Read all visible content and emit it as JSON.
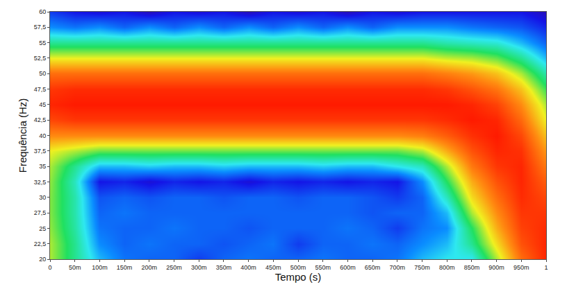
{
  "chart_data": {
    "type": "heatmap",
    "xlabel": "Tempo (s)",
    "ylabel": "Frequência (Hz)",
    "x": [
      0,
      0.05,
      0.1,
      0.15,
      0.2,
      0.25,
      0.3,
      0.35,
      0.4,
      0.45,
      0.5,
      0.55,
      0.6,
      0.65,
      0.7,
      0.75,
      0.8,
      0.85,
      0.9,
      0.95,
      1
    ],
    "y": [
      20,
      22.5,
      25,
      27.5,
      30,
      32.5,
      35,
      37.5,
      40,
      42.5,
      45,
      47.5,
      50,
      52.5,
      55,
      57.5,
      60
    ],
    "cells": [
      [
        0.6,
        0.45,
        0.3,
        0.22,
        0.2,
        0.2,
        0.15,
        0.2,
        0.22,
        0.2,
        0.2,
        0.22,
        0.2,
        0.2,
        0.22,
        0.3,
        0.35,
        0.35,
        0.6,
        0.85,
        0.98
      ],
      [
        0.6,
        0.45,
        0.25,
        0.2,
        0.22,
        0.2,
        0.2,
        0.18,
        0.2,
        0.22,
        0.15,
        0.2,
        0.2,
        0.22,
        0.2,
        0.25,
        0.3,
        0.45,
        0.68,
        0.9,
        0.98
      ],
      [
        0.58,
        0.43,
        0.22,
        0.2,
        0.2,
        0.22,
        0.2,
        0.2,
        0.18,
        0.2,
        0.2,
        0.2,
        0.22,
        0.2,
        0.15,
        0.22,
        0.25,
        0.5,
        0.75,
        0.93,
        0.97
      ],
      [
        0.57,
        0.42,
        0.2,
        0.22,
        0.2,
        0.2,
        0.2,
        0.2,
        0.2,
        0.2,
        0.2,
        0.2,
        0.2,
        0.18,
        0.2,
        0.2,
        0.3,
        0.6,
        0.8,
        0.95,
        0.95
      ],
      [
        0.57,
        0.42,
        0.18,
        0.2,
        0.18,
        0.2,
        0.2,
        0.18,
        0.2,
        0.2,
        0.18,
        0.2,
        0.2,
        0.18,
        0.15,
        0.2,
        0.4,
        0.68,
        0.85,
        0.97,
        0.92
      ],
      [
        0.58,
        0.4,
        0.1,
        0.12,
        0.08,
        0.12,
        0.1,
        0.12,
        0.08,
        0.12,
        0.1,
        0.12,
        0.1,
        0.12,
        0.1,
        0.25,
        0.5,
        0.75,
        0.9,
        0.98,
        0.88
      ],
      [
        0.6,
        0.45,
        0.3,
        0.3,
        0.32,
        0.3,
        0.3,
        0.32,
        0.3,
        0.3,
        0.3,
        0.32,
        0.3,
        0.3,
        0.35,
        0.4,
        0.6,
        0.83,
        0.95,
        0.98,
        0.83
      ],
      [
        0.65,
        0.6,
        0.55,
        0.55,
        0.55,
        0.55,
        0.55,
        0.55,
        0.55,
        0.55,
        0.55,
        0.55,
        0.55,
        0.55,
        0.55,
        0.6,
        0.75,
        0.9,
        0.98,
        0.96,
        0.78
      ],
      [
        0.8,
        0.8,
        0.8,
        0.8,
        0.8,
        0.8,
        0.8,
        0.8,
        0.8,
        0.8,
        0.8,
        0.8,
        0.8,
        0.8,
        0.8,
        0.82,
        0.88,
        0.96,
        1,
        0.92,
        0.72
      ],
      [
        0.92,
        0.95,
        0.95,
        0.95,
        0.95,
        0.95,
        0.95,
        0.95,
        0.95,
        0.95,
        0.95,
        0.95,
        0.95,
        0.95,
        0.95,
        0.95,
        0.97,
        1,
        0.98,
        0.86,
        0.65
      ],
      [
        0.98,
        1,
        1,
        1,
        1,
        1,
        1,
        1,
        1,
        1,
        1,
        1,
        1,
        1,
        1,
        1,
        1,
        0.98,
        0.93,
        0.8,
        0.6
      ],
      [
        0.95,
        0.97,
        0.97,
        0.97,
        0.97,
        0.97,
        0.97,
        0.97,
        0.97,
        0.97,
        0.97,
        0.97,
        0.97,
        0.97,
        0.97,
        0.97,
        0.95,
        0.9,
        0.84,
        0.72,
        0.52
      ],
      [
        0.85,
        0.85,
        0.85,
        0.85,
        0.85,
        0.85,
        0.85,
        0.85,
        0.85,
        0.85,
        0.85,
        0.85,
        0.85,
        0.85,
        0.85,
        0.85,
        0.82,
        0.78,
        0.72,
        0.6,
        0.42
      ],
      [
        0.65,
        0.65,
        0.65,
        0.65,
        0.65,
        0.65,
        0.65,
        0.65,
        0.65,
        0.65,
        0.65,
        0.65,
        0.65,
        0.65,
        0.65,
        0.65,
        0.62,
        0.6,
        0.55,
        0.45,
        0.3
      ],
      [
        0.45,
        0.45,
        0.45,
        0.45,
        0.45,
        0.45,
        0.45,
        0.45,
        0.45,
        0.45,
        0.45,
        0.45,
        0.45,
        0.45,
        0.45,
        0.45,
        0.42,
        0.4,
        0.38,
        0.3,
        0.2
      ],
      [
        0.25,
        0.22,
        0.25,
        0.2,
        0.25,
        0.2,
        0.25,
        0.2,
        0.25,
        0.2,
        0.25,
        0.2,
        0.25,
        0.2,
        0.25,
        0.25,
        0.25,
        0.22,
        0.2,
        0.18,
        0.12
      ],
      [
        0.15,
        0.1,
        0.08,
        0.1,
        0.05,
        0.1,
        0.08,
        0.1,
        0.05,
        0.1,
        0.08,
        0.1,
        0.05,
        0.1,
        0.08,
        0.1,
        0.1,
        0.1,
        0.1,
        0.1,
        0.05
      ]
    ],
    "zlim": [
      0,
      1
    ],
    "xlim": [
      0,
      1
    ],
    "ylim": [
      20,
      60
    ],
    "xticks": [
      0,
      {
        "value": 0.05,
        "label": "50m"
      },
      {
        "value": 0.1,
        "label": "100m"
      },
      {
        "value": 0.15,
        "label": "150m"
      },
      {
        "value": 0.2,
        "label": "200m"
      },
      {
        "value": 0.25,
        "label": "250m"
      },
      {
        "value": 0.3,
        "label": "300m"
      },
      {
        "value": 0.35,
        "label": "350m"
      },
      {
        "value": 0.4,
        "label": "400m"
      },
      {
        "value": 0.45,
        "label": "450m"
      },
      {
        "value": 0.5,
        "label": "500m"
      },
      {
        "value": 0.55,
        "label": "550m"
      },
      {
        "value": 0.6,
        "label": "600m"
      },
      {
        "value": 0.65,
        "label": "650m"
      },
      {
        "value": 0.7,
        "label": "700m"
      },
      {
        "value": 0.75,
        "label": "750m"
      },
      {
        "value": 0.8,
        "label": "800m"
      },
      {
        "value": 0.85,
        "label": "850m"
      },
      {
        "value": 0.9,
        "label": "900m"
      },
      {
        "value": 0.95,
        "label": "950m"
      },
      1
    ],
    "yticks": [
      20,
      {
        "value": 22.5,
        "label": "22,5"
      },
      25,
      {
        "value": 27.5,
        "label": "27,5"
      },
      30,
      {
        "value": 32.5,
        "label": "32,5"
      },
      35,
      {
        "value": 37.5,
        "label": "37,5"
      },
      40,
      {
        "value": 42.5,
        "label": "42,5"
      },
      45,
      {
        "value": 47.5,
        "label": "47,5"
      },
      50,
      {
        "value": 52.5,
        "label": "52,5"
      },
      55,
      {
        "value": 57.5,
        "label": "57,5"
      },
      60
    ],
    "grid": false
  }
}
